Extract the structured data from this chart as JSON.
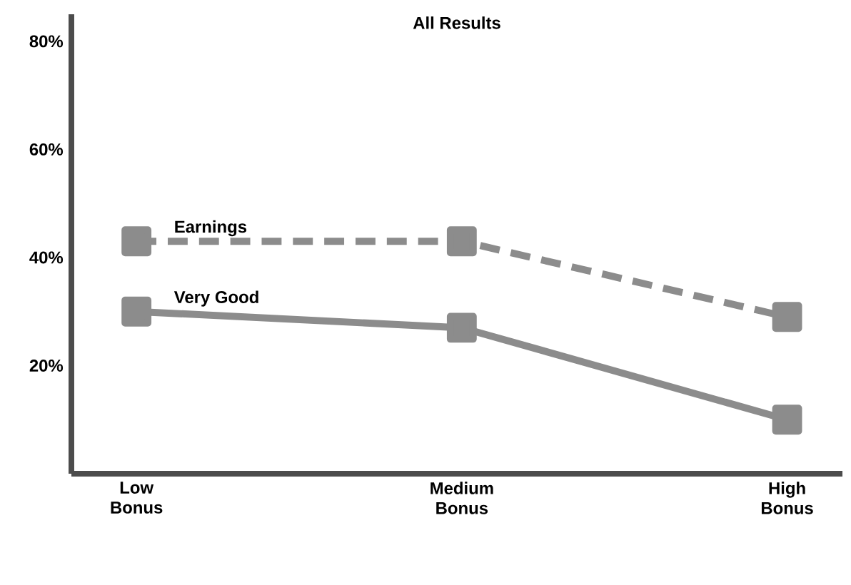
{
  "chart_data": {
    "type": "line",
    "title": "All Results",
    "categories": [
      "Low Bonus",
      "Medium Bonus",
      "High Bonus"
    ],
    "series": [
      {
        "name": "Earnings",
        "color": "#8c8c8c",
        "values": [
          43,
          43,
          29
        ],
        "line_style": "dashed"
      },
      {
        "name": "Very Good",
        "color": "#8c8c8c",
        "values": [
          30,
          27,
          10
        ],
        "line_style": "solid"
      }
    ],
    "ylim": [
      0,
      85
    ],
    "yticks": [
      {
        "value": 20,
        "label": "20%"
      },
      {
        "value": 40,
        "label": "40%"
      },
      {
        "value": 60,
        "label": "60%"
      },
      {
        "value": 80,
        "label": "80%"
      }
    ],
    "marker": "square",
    "grid": false
  }
}
